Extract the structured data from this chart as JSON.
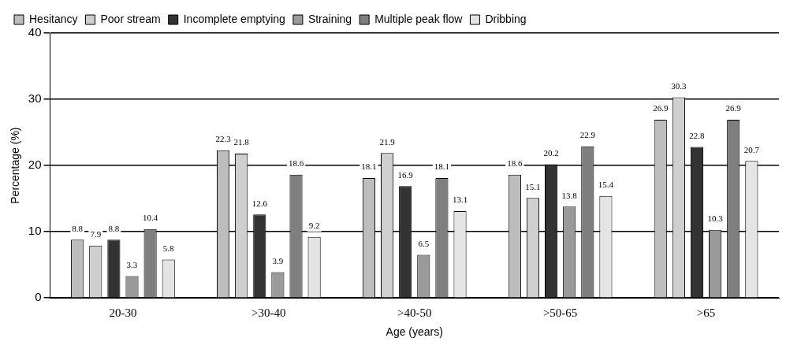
{
  "chart_data": {
    "type": "bar",
    "xlabel": "Age (years)",
    "ylabel": "Percentage (%)",
    "categories": [
      "20-30",
      ">30-40",
      ">40-50",
      ">50-65",
      ">65"
    ],
    "series": [
      {
        "name": "Hesitancy",
        "color": "#bdbdbd",
        "values": [
          8.8,
          22.3,
          18.1,
          18.6,
          26.9
        ]
      },
      {
        "name": "Poor stream",
        "color": "#cfcfcf",
        "values": [
          7.9,
          21.8,
          21.9,
          15.1,
          30.3
        ]
      },
      {
        "name": "Incomplete emptying",
        "color": "#333333",
        "values": [
          8.8,
          12.6,
          16.9,
          20.2,
          22.8
        ]
      },
      {
        "name": "Straining",
        "color": "#9a9a9a",
        "values": [
          3.3,
          3.9,
          6.5,
          13.8,
          10.3
        ]
      },
      {
        "name": "Multiple peak flow",
        "color": "#7f7f7f",
        "values": [
          10.4,
          18.6,
          18.1,
          22.9,
          26.9
        ]
      },
      {
        "name": "Dribbing",
        "color": "#e4e4e4",
        "values": [
          5.8,
          9.2,
          13.1,
          15.4,
          20.7
        ]
      }
    ],
    "ylim": [
      0,
      40
    ],
    "yticks": [
      0,
      10,
      20,
      30,
      40
    ],
    "grid": "y",
    "legend": "top left",
    "data_labels": true
  }
}
